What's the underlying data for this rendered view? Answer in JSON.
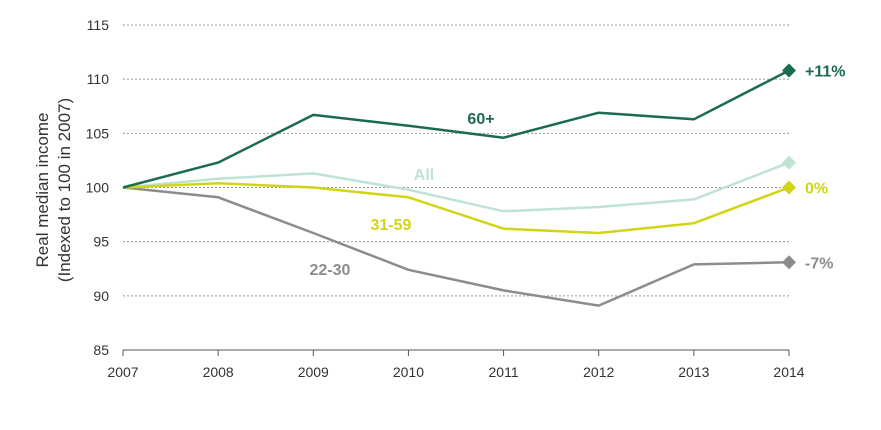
{
  "chart_data": {
    "type": "line",
    "ylabel": [
      "Real median income",
      "(Indexed to 100 in 2007)"
    ],
    "x": [
      "2007",
      "2008",
      "2009",
      "2010",
      "2011",
      "2012",
      "2013",
      "2014"
    ],
    "ylim": [
      85,
      115
    ],
    "yticks": [
      85,
      90,
      95,
      100,
      105,
      110,
      115
    ],
    "grid": true,
    "series": [
      {
        "name": "60+",
        "color": "#1b6b52",
        "end_label": "+11%",
        "marker": "diamond",
        "values": [
          100,
          102.3,
          106.7,
          105.7,
          104.6,
          106.9,
          106.3,
          110.8
        ]
      },
      {
        "name": "All",
        "color": "#bfe3d3",
        "end_label": "",
        "marker": "diamond",
        "values": [
          100,
          100.8,
          101.3,
          99.8,
          97.8,
          98.2,
          98.9,
          102.3
        ]
      },
      {
        "name": "31-59",
        "color": "#d2d417",
        "end_label": "0%",
        "marker": "diamond",
        "values": [
          100,
          100.4,
          100.0,
          99.1,
          96.2,
          95.8,
          96.7,
          100.0
        ]
      },
      {
        "name": "22-30",
        "color": "#8c8c8c",
        "end_label": "-7%",
        "marker": "diamond",
        "values": [
          100,
          99.1,
          95.8,
          92.4,
          90.5,
          89.1,
          92.9,
          93.1
        ]
      }
    ]
  }
}
